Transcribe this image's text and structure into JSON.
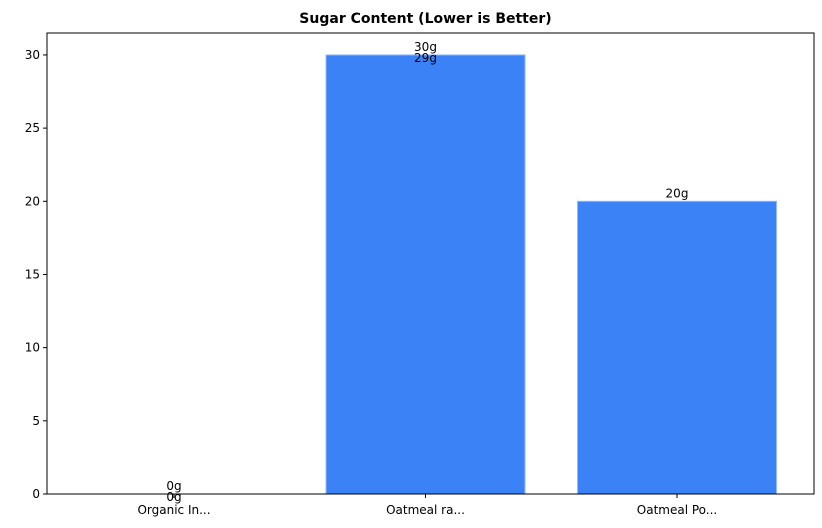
{
  "chart_data": {
    "type": "bar",
    "title": "Sugar Content (Lower is Better)",
    "xlabel": "",
    "ylabel": "",
    "categories": [
      "Organic In...",
      "Oatmeal ra...",
      "Oatmeal Po..."
    ],
    "values": [
      0,
      30,
      20
    ],
    "data_labels": [
      [
        "0g",
        "0g"
      ],
      [
        "30g",
        "29g"
      ],
      [
        "20g"
      ]
    ],
    "ylim": [
      0,
      31.5
    ],
    "yticks": [
      0,
      5,
      10,
      15,
      20,
      25,
      30
    ],
    "grid": false,
    "legend": "none",
    "colors": {
      "bar": "#3b82f6",
      "bar_edge": "#93b9f8",
      "axis": "#000000",
      "background": "#ffffff"
    }
  }
}
